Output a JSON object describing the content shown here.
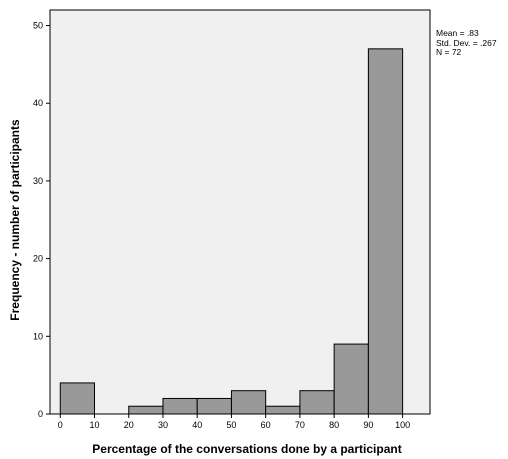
{
  "chart_data": {
    "type": "bar",
    "subtype": "histogram",
    "bins": [
      {
        "start": 0,
        "end": 10,
        "count": 4
      },
      {
        "start": 10,
        "end": 20,
        "count": 0
      },
      {
        "start": 20,
        "end": 30,
        "count": 1
      },
      {
        "start": 30,
        "end": 40,
        "count": 2
      },
      {
        "start": 40,
        "end": 50,
        "count": 2
      },
      {
        "start": 50,
        "end": 60,
        "count": 3
      },
      {
        "start": 60,
        "end": 70,
        "count": 1
      },
      {
        "start": 70,
        "end": 80,
        "count": 3
      },
      {
        "start": 80,
        "end": 90,
        "count": 9
      },
      {
        "start": 90,
        "end": 100,
        "count": 47
      }
    ],
    "xlabel": "Percentage of the conversations done by a participant",
    "ylabel": "Frequency - number of participants",
    "xlim": [
      -3,
      108
    ],
    "ylim": [
      0,
      52
    ],
    "xticks": [
      0,
      10,
      20,
      30,
      40,
      50,
      60,
      70,
      80,
      90,
      100
    ],
    "yticks": [
      0,
      10,
      20,
      30,
      40,
      50
    ],
    "grid": false,
    "plot_background": "#f0f0f0",
    "bar_color": "#999999",
    "bar_edge_color": "#000000",
    "stats": {
      "mean": "Mean = .83",
      "std": "Std. Dev. = .267",
      "n": "N = 72"
    }
  }
}
